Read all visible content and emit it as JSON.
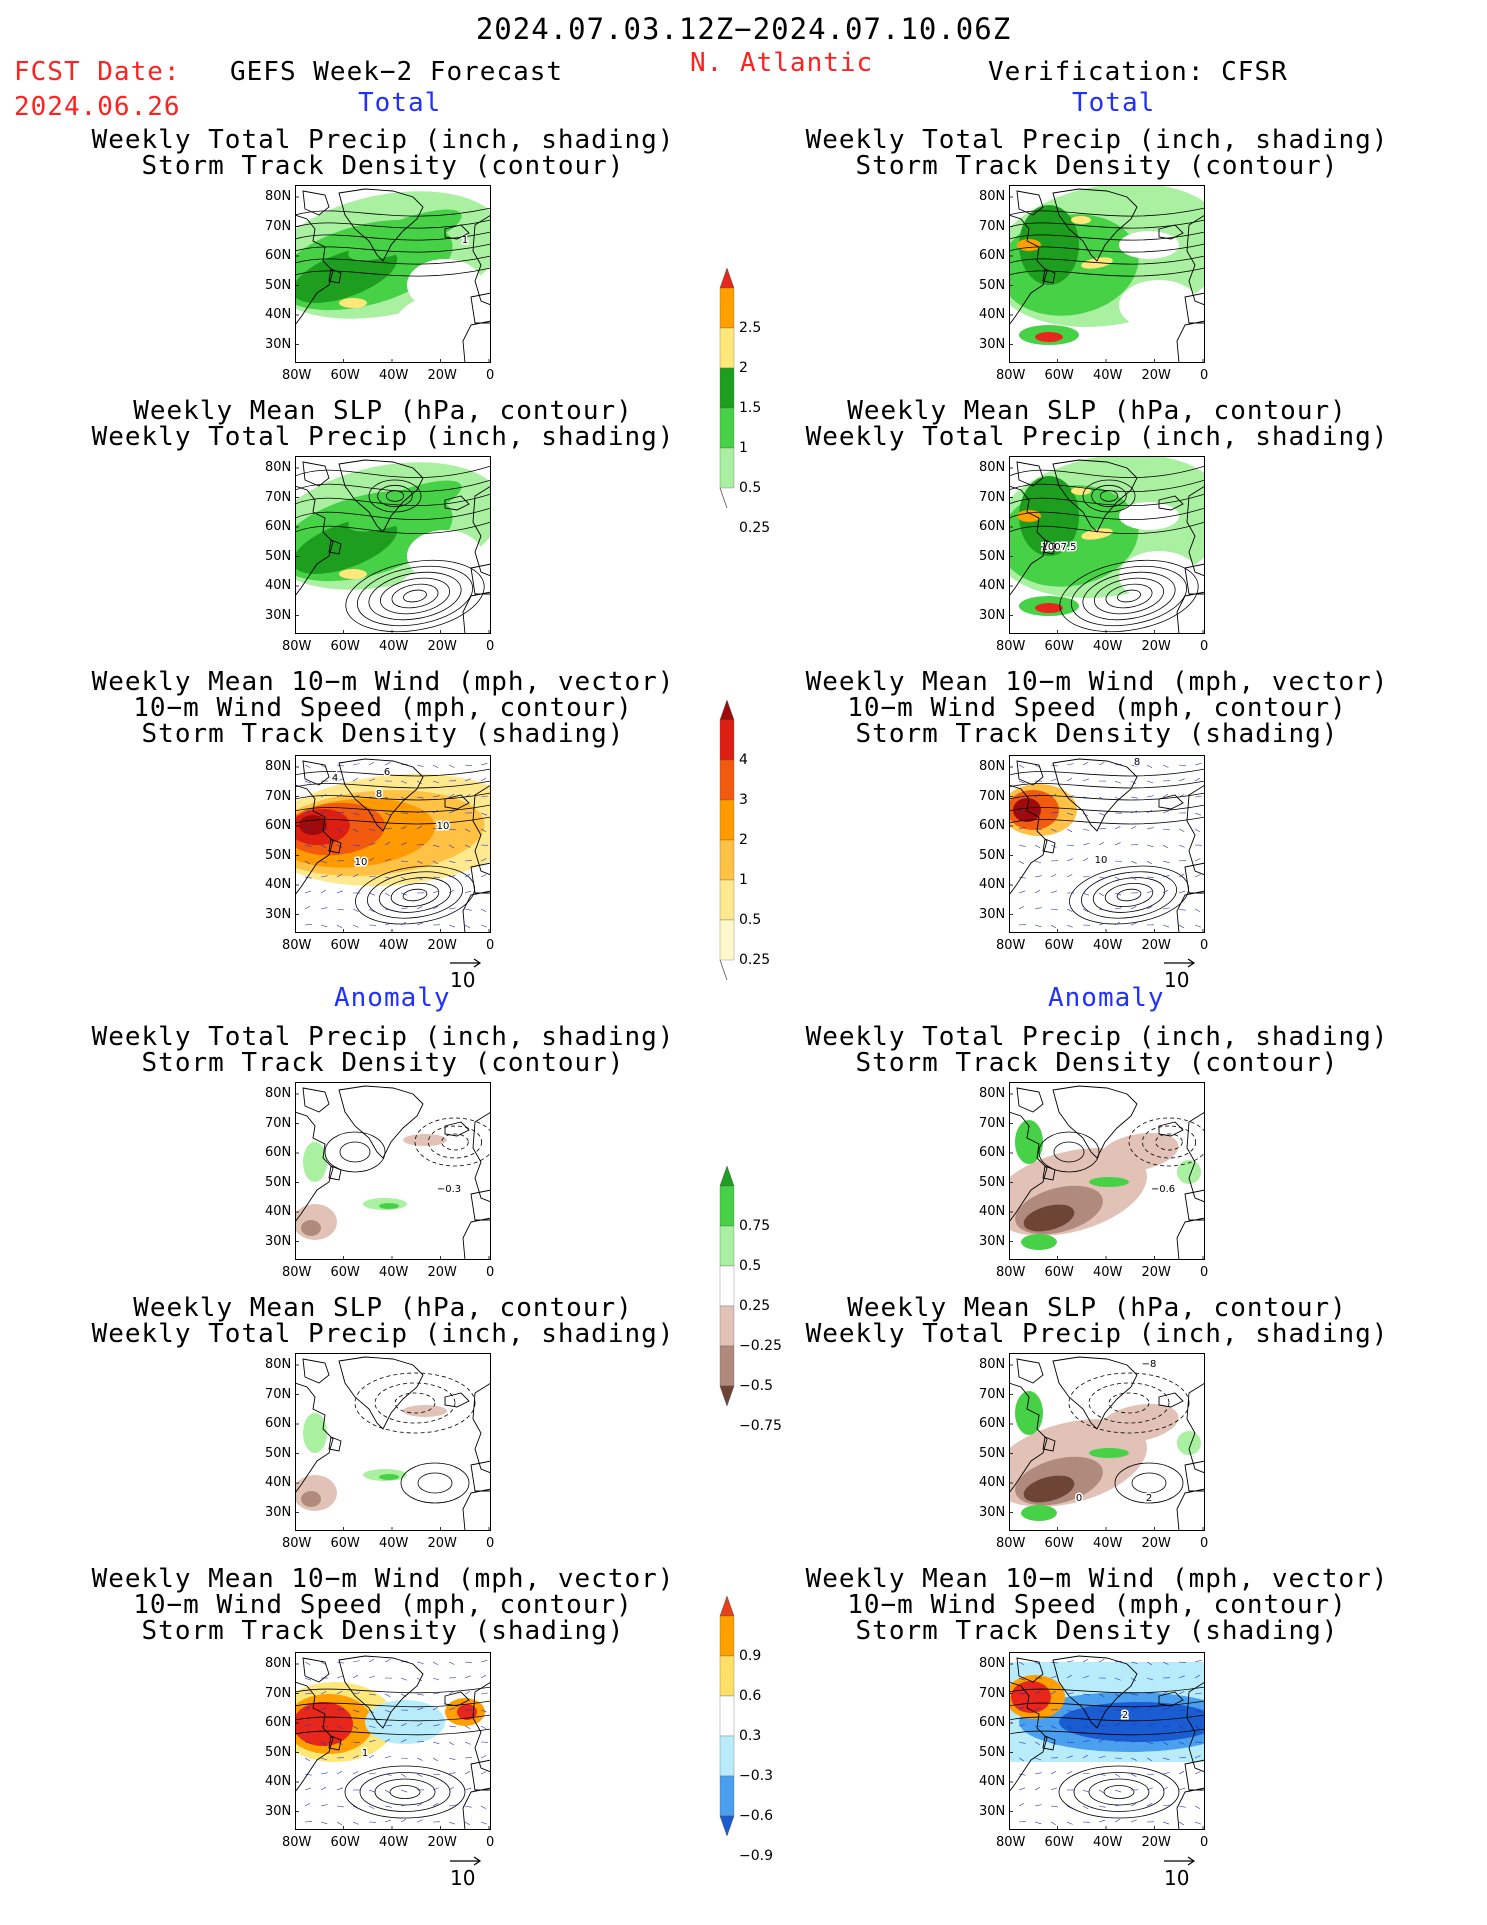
{
  "header": {
    "date_range": "2024.07.03.12Z−2024.07.10.06Z",
    "fcst_label": "FCST Date:",
    "fcst_date": "2024.06.26",
    "model": "GEFS Week−2 Forecast",
    "region": "N. Atlantic",
    "verification": "Verification: CFSR"
  },
  "sections": {
    "total": "Total",
    "anomaly": "Anomaly"
  },
  "titles": {
    "precip_track": [
      "Weekly Total Precip (inch, shading)",
      "Storm Track Density (contour)"
    ],
    "slp_precip": [
      "Weekly Mean SLP (hPa, contour)",
      "Weekly Total Precip (inch, shading)"
    ],
    "wind_track": [
      "Weekly Mean 10−m Wind (mph, vector)",
      "10−m Wind Speed (mph, contour)",
      "Storm Track Density (shading)"
    ]
  },
  "axes": {
    "lat_labels": [
      "80N",
      "70N",
      "60N",
      "50N",
      "40N",
      "30N"
    ],
    "lon_labels": [
      "80W",
      "60W",
      "40W",
      "20W",
      "0"
    ]
  },
  "vector_ref": "10",
  "contour_labels": {
    "fcst_total_precip": "1",
    "verif_total_slp": "1007.5",
    "fcst_total_wind": [
      "6",
      "4",
      "8",
      "10",
      "10"
    ],
    "verif_total_wind": [
      "8",
      "10"
    ],
    "fcst_anom_precip": "−0.3",
    "verif_anom_precip": "−0.6",
    "verif_anom_slp": [
      "0",
      "2",
      "−8"
    ],
    "fcst_anom_wind": "1",
    "verif_anom_wind": "2"
  },
  "colorbars": {
    "precip_total": {
      "labels": [
        "2.5",
        "2",
        "1.5",
        "1",
        "0.5",
        "0.25"
      ],
      "colors": [
        "#e8261c",
        "#ff9f00",
        "#ffe87a",
        "#1e9e1e",
        "#46d146",
        "#a9f0a0"
      ]
    },
    "storm_total": {
      "labels": [
        "4",
        "3",
        "2",
        "1",
        "0.5",
        "0.25"
      ],
      "colors": [
        "#a00a0a",
        "#dd1e12",
        "#f25a10",
        "#ff9a00",
        "#ffc244",
        "#ffe98f",
        "#fff8cc"
      ]
    },
    "precip_anom": {
      "labels": [
        "0.75",
        "0.5",
        "0.25",
        "−0.25",
        "−0.5",
        "−0.75"
      ],
      "colors": [
        "#1e9e1e",
        "#46d146",
        "#a9f0a0",
        "#ffffff",
        "#e2c2b6",
        "#b08a7c",
        "#6e4535"
      ]
    },
    "storm_anom": {
      "labels": [
        "0.9",
        "0.6",
        "0.3",
        "−0.3",
        "−0.6",
        "−0.9"
      ],
      "colors": [
        "#e8401c",
        "#ff9f00",
        "#ffe066",
        "#ffffff",
        "#b8ecfa",
        "#4aa0ee",
        "#1a5cd2"
      ]
    }
  }
}
